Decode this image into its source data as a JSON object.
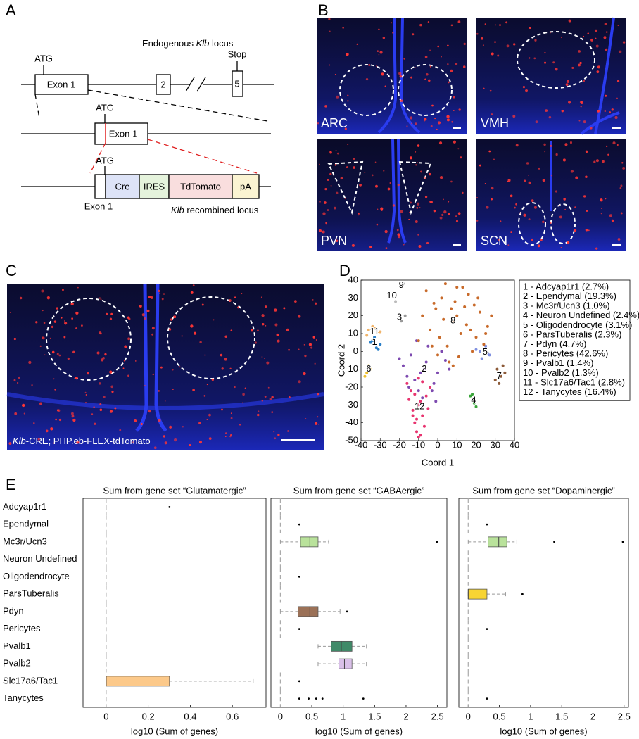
{
  "panel_labels": [
    "A",
    "B",
    "C",
    "D",
    "E"
  ],
  "panel_a": {
    "endogenous_label": [
      "Endogenous ",
      "Klb",
      " locus"
    ],
    "atg": [
      "ATG",
      "ATG",
      "ATG"
    ],
    "exon1": [
      "Exon 1",
      "Exon 1",
      "Exon 1"
    ],
    "exon2": "2",
    "exon5": "5",
    "stop": "Stop",
    "cassette": [
      "Cre",
      "IRES",
      "TdTomato",
      "pA"
    ],
    "recombined_label": [
      "Klb",
      " recombined locus"
    ]
  },
  "panel_b": {
    "regions": [
      "ARC",
      "VMH",
      "PVN",
      "SCN"
    ]
  },
  "panel_c": {
    "caption": [
      "Klb",
      "-CRE; PHP.eb-FLEX-tdTomato"
    ]
  },
  "chart_data": [
    {
      "type": "scatter",
      "xlabel": "Coord 1",
      "ylabel": "Coord 2",
      "xlim": [
        -40,
        40
      ],
      "ylim": [
        -50,
        40
      ],
      "xticks": [
        -40,
        -30,
        -20,
        -10,
        0,
        10,
        20,
        30,
        40
      ],
      "yticks": [
        -50,
        -40,
        -30,
        -20,
        -10,
        0,
        10,
        20,
        30,
        40
      ],
      "series": [
        {
          "name": "1 - Adcyap1r1 (2.7%)",
          "label": "1",
          "label_x": -33,
          "label_y": 5,
          "color": "#2a7fc8",
          "x": [
            -34,
            -32,
            -30,
            -33,
            -31,
            -35
          ],
          "y": [
            6,
            2,
            4,
            8,
            1,
            5
          ]
        },
        {
          "name": "2 - Ependymal (19.3%)",
          "label": "2",
          "label_x": -7,
          "label_y": -10,
          "color": "#7d4ab0",
          "x": [
            -7,
            -14,
            -2,
            -18,
            4,
            -10,
            -5,
            -16,
            0,
            -12,
            -8,
            2,
            -20,
            -3,
            6,
            -11,
            -6,
            -15,
            -1,
            -9
          ],
          "y": [
            -10,
            -2,
            -18,
            -8,
            -5,
            -22,
            3,
            -14,
            -12,
            -16,
            -26,
            0,
            -4,
            -22,
            -10,
            6,
            -6,
            -20,
            -28,
            -12
          ]
        },
        {
          "name": "3 - Mc3r/Ucn3 (1.0%)",
          "label": "3",
          "label_x": -20,
          "label_y": 19,
          "color": "#999999",
          "x": [
            -17,
            -19
          ],
          "y": [
            20,
            17
          ]
        },
        {
          "name": "4 - Neuron Undefined (2.4%)",
          "label": "4",
          "label_x": 18.7,
          "label_y": -27.5,
          "color": "#3aa53a",
          "x": [
            18,
            19,
            20,
            17,
            19
          ],
          "y": [
            -24,
            -27,
            -31,
            -25,
            -29
          ]
        },
        {
          "name": "5 - Oligodendrocyte (3.1%)",
          "label": "5",
          "label_x": 24.7,
          "label_y": -0.5,
          "color": "#8090e0",
          "x": [
            22,
            25,
            27,
            23,
            20,
            26
          ],
          "y": [
            0,
            3,
            -2,
            -4,
            1,
            -1
          ]
        },
        {
          "name": "6 - ParsTuberalis (2.3%)",
          "label": "6",
          "label_x": -36,
          "label_y": -10,
          "color": "#eec030",
          "x": [
            -36,
            -37,
            -35,
            -38
          ],
          "y": [
            -8,
            -12,
            -10,
            -14
          ]
        },
        {
          "name": "7 - Pdyn (4.7%)",
          "label": "7",
          "label_x": 32,
          "label_y": -14,
          "color": "#8c5a38",
          "x": [
            31,
            33,
            35,
            32,
            30,
            34
          ],
          "y": [
            -10,
            -14,
            -12,
            -18,
            -16,
            -8
          ]
        },
        {
          "name": "8 - Pericytes (42.6%)",
          "label": "8",
          "label_x": 8,
          "label_y": 17,
          "color": "#c86a2a",
          "x": [
            8,
            2,
            14,
            -4,
            20,
            10,
            -8,
            26,
            5,
            16,
            0,
            12,
            -2,
            22,
            6,
            18,
            -10,
            28,
            9,
            3,
            15,
            -6,
            24,
            11,
            7,
            19,
            1,
            13,
            -3,
            17,
            4,
            21,
            10,
            -1,
            25,
            8
          ],
          "y": [
            17,
            30,
            25,
            12,
            8,
            36,
            20,
            14,
            3,
            32,
            -2,
            10,
            27,
            22,
            -6,
            0,
            6,
            20,
            28,
            18,
            15,
            34,
            4,
            -3,
            24,
            26,
            8,
            36,
            3,
            12,
            38,
            30,
            20,
            24,
            10,
            -8
          ]
        },
        {
          "name": "9 - Pvalb1 (1.4%)",
          "label": "9",
          "label_x": -19,
          "label_y": 37,
          "color": "#aaaaaa",
          "x": [
            -18
          ],
          "y": [
            38
          ]
        },
        {
          "name": "10 - Pvalb2 (1.3%)",
          "label": "10",
          "label_x": -24,
          "label_y": 31,
          "color": "#bbbbbb",
          "x": [
            -22
          ],
          "y": [
            28
          ]
        },
        {
          "name": "11 - Slc17a6/Tac1 (2.8%)",
          "label": "11",
          "label_x": -33,
          "label_y": 11,
          "color": "#f0b46a",
          "x": [
            -36,
            -34,
            -31,
            -33,
            -37,
            -30
          ],
          "y": [
            12,
            14,
            10,
            13,
            9,
            11
          ]
        },
        {
          "name": "12 - Tanycytes (16.4%)",
          "label": "12",
          "label_x": -9.5,
          "label_y": -31,
          "color": "#e8336f",
          "x": [
            -10,
            -14,
            -6,
            -16,
            -8,
            -12,
            -4,
            -11,
            -9,
            -13,
            -7,
            -15,
            -10,
            -12,
            -8,
            -5,
            -11,
            -9,
            -13,
            -10
          ],
          "y": [
            -30,
            -22,
            -25,
            -18,
            -36,
            -40,
            -20,
            -45,
            -28,
            -33,
            -42,
            -27,
            -48,
            -24,
            -17,
            -32,
            -38,
            -47,
            -36,
            -15
          ]
        }
      ]
    },
    {
      "type": "box",
      "title": "Sum from gene set “Glutamatergic”",
      "xlabel": "log10 (Sum of genes)",
      "categories": [
        "Adcyap1r1",
        "Ependymal",
        "Mc3r/Ucn3",
        "Neuron Undefined",
        "Oligodendrocyte",
        "ParsTuberalis",
        "Pdyn",
        "Pericytes",
        "Pvalb1",
        "Pvalb2",
        "Slc17a6/Tac1",
        "Tanycytes"
      ],
      "xlim": [
        -0.11,
        0.76
      ],
      "xticks": [
        0,
        0.2,
        0.4,
        0.6
      ],
      "boxes": [
        {
          "min": 0,
          "q1": 0,
          "median": 0,
          "q3": 0,
          "max": 0,
          "outliers": [
            0.301
          ]
        },
        {
          "min": 0,
          "q1": 0,
          "median": 0,
          "q3": 0,
          "max": 0,
          "outliers": []
        },
        {
          "min": 0,
          "q1": 0,
          "median": 0,
          "q3": 0,
          "max": 0,
          "outliers": []
        },
        {
          "min": 0,
          "q1": 0,
          "median": 0,
          "q3": 0,
          "max": 0,
          "outliers": []
        },
        {
          "min": 0,
          "q1": 0,
          "median": 0,
          "q3": 0,
          "max": 0,
          "outliers": []
        },
        {
          "min": 0,
          "q1": 0,
          "median": 0,
          "q3": 0,
          "max": 0,
          "outliers": []
        },
        {
          "min": 0,
          "q1": 0,
          "median": 0,
          "q3": 0,
          "max": 0,
          "outliers": []
        },
        {
          "min": 0,
          "q1": 0,
          "median": 0,
          "q3": 0,
          "max": 0,
          "outliers": []
        },
        {
          "min": 0,
          "q1": 0,
          "median": 0,
          "q3": 0,
          "max": 0,
          "outliers": []
        },
        {
          "min": 0,
          "q1": 0,
          "median": 0,
          "q3": 0,
          "max": 0,
          "outliers": []
        },
        {
          "min": 0,
          "q1": 0,
          "median": 0,
          "q3": 0.301,
          "max": 0.699,
          "outliers": [],
          "color": "#fcc98a"
        },
        {
          "min": 0,
          "q1": 0,
          "median": 0,
          "q3": 0,
          "max": 0,
          "outliers": []
        }
      ]
    },
    {
      "type": "box",
      "title": "Sum from gene set “GABAergic”",
      "xlabel": "log10 (Sum of genes)",
      "xlim": [
        -0.15,
        2.65
      ],
      "xticks": [
        0,
        0.5,
        1,
        1.5,
        2,
        2.5
      ],
      "boxes": [
        {
          "min": 0,
          "q1": 0,
          "median": 0,
          "q3": 0,
          "max": 0,
          "outliers": []
        },
        {
          "min": 0,
          "q1": 0,
          "median": 0,
          "q3": 0,
          "max": 0,
          "outliers": [
            0.301
          ]
        },
        {
          "min": 0,
          "q1": 0.32,
          "median": 0.47,
          "q3": 0.6,
          "max": 0.77,
          "outliers": [
            2.49
          ],
          "color": "#b9e29b"
        },
        {
          "min": 0,
          "q1": 0,
          "median": 0,
          "q3": 0,
          "max": 0,
          "outliers": []
        },
        {
          "min": 0,
          "q1": 0,
          "median": 0,
          "q3": 0,
          "max": 0,
          "outliers": [
            0.301
          ]
        },
        {
          "min": 0,
          "q1": 0,
          "median": 0,
          "q3": 0,
          "max": 0,
          "outliers": []
        },
        {
          "min": 0,
          "q1": 0.28,
          "median": 0.47,
          "q3": 0.6,
          "max": 0.95,
          "outliers": [
            1.06
          ],
          "color": "#9b7157"
        },
        {
          "min": 0,
          "q1": 0,
          "median": 0,
          "q3": 0,
          "max": 0,
          "outliers": [
            0.301
          ]
        },
        {
          "min": 0.6,
          "q1": 0.81,
          "median": 0.97,
          "q3": 1.14,
          "max": 1.37,
          "outliers": [],
          "color": "#3f8a68"
        },
        {
          "min": 0.6,
          "q1": 0.93,
          "median": 1.02,
          "q3": 1.14,
          "max": 1.37,
          "outliers": [],
          "color": "#d9c0e8"
        },
        {
          "min": 0,
          "q1": 0,
          "median": 0,
          "q3": 0,
          "max": 0,
          "outliers": [
            0.301
          ]
        },
        {
          "min": 0,
          "q1": 0,
          "median": 0,
          "q3": 0,
          "max": 0,
          "outliers": [
            0.301,
            0.45,
            0.57,
            0.67,
            1.32
          ]
        }
      ]
    },
    {
      "type": "box",
      "title": "Sum from gene set “Dopaminergic”",
      "xlabel": "log10 (Sum of genes)",
      "xlim": [
        -0.15,
        2.57
      ],
      "xticks": [
        0,
        0.5,
        1,
        1.5,
        2,
        2.5
      ],
      "boxes": [
        {
          "min": 0,
          "q1": 0,
          "median": 0,
          "q3": 0,
          "max": 0,
          "outliers": []
        },
        {
          "min": 0,
          "q1": 0,
          "median": 0,
          "q3": 0,
          "max": 0,
          "outliers": [
            0.301
          ]
        },
        {
          "min": 0,
          "q1": 0.32,
          "median": 0.49,
          "q3": 0.62,
          "max": 0.78,
          "outliers": [
            1.38,
            2.48
          ],
          "color": "#b9e29b"
        },
        {
          "min": 0,
          "q1": 0,
          "median": 0,
          "q3": 0,
          "max": 0,
          "outliers": []
        },
        {
          "min": 0,
          "q1": 0,
          "median": 0,
          "q3": 0,
          "max": 0,
          "outliers": []
        },
        {
          "min": 0,
          "q1": 0,
          "median": 0,
          "q3": 0.301,
          "max": 0.6,
          "outliers": [
            0.87
          ],
          "color": "#f7d433"
        },
        {
          "min": 0,
          "q1": 0,
          "median": 0,
          "q3": 0,
          "max": 0,
          "outliers": []
        },
        {
          "min": 0,
          "q1": 0,
          "median": 0,
          "q3": 0,
          "max": 0,
          "outliers": [
            0.301
          ]
        },
        {
          "min": 0,
          "q1": 0,
          "median": 0,
          "q3": 0,
          "max": 0,
          "outliers": []
        },
        {
          "min": 0,
          "q1": 0,
          "median": 0,
          "q3": 0,
          "max": 0,
          "outliers": []
        },
        {
          "min": 0,
          "q1": 0,
          "median": 0,
          "q3": 0,
          "max": 0,
          "outliers": []
        },
        {
          "min": 0,
          "q1": 0,
          "median": 0,
          "q3": 0,
          "max": 0,
          "outliers": [
            0.301
          ]
        }
      ]
    }
  ]
}
